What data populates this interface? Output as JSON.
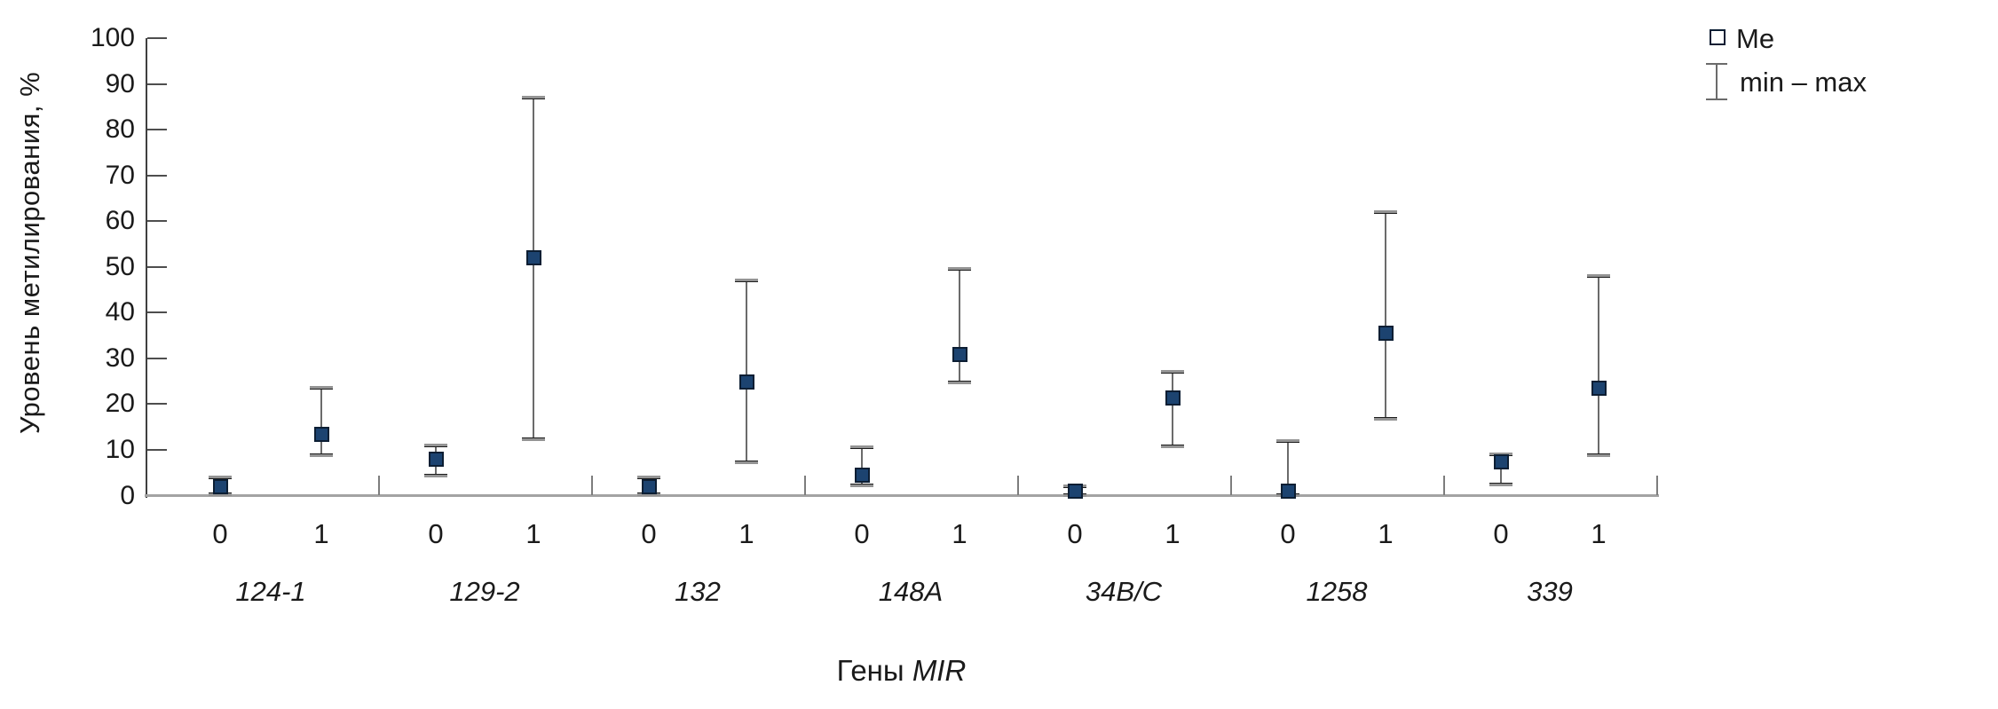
{
  "chart_data": {
    "type": "scatter",
    "title": "",
    "ylabel": "Уровень метилирования, %",
    "xlabel": {
      "prefix": "Гены ",
      "gene": "MIR"
    },
    "ylim": [
      0,
      100
    ],
    "yticks": [
      0,
      10,
      20,
      30,
      40,
      50,
      60,
      70,
      80,
      90,
      100
    ],
    "legend": {
      "me_label": "Me",
      "range_label": "min – max",
      "position": "top-right"
    },
    "grid": false,
    "x_category_labels": [
      "0",
      "1"
    ],
    "groups": [
      {
        "gene": "124-1",
        "points": [
          {
            "x": "0",
            "me": 2,
            "min": 0.5,
            "max": 4
          },
          {
            "x": "1",
            "me": 13.5,
            "min": 9,
            "max": 23.5
          }
        ]
      },
      {
        "gene": "129-2",
        "points": [
          {
            "x": "0",
            "me": 8,
            "min": 4.5,
            "max": 11
          },
          {
            "x": "1",
            "me": 52,
            "min": 12.5,
            "max": 87
          }
        ]
      },
      {
        "gene": "132",
        "points": [
          {
            "x": "0",
            "me": 2,
            "min": 0.5,
            "max": 4
          },
          {
            "x": "1",
            "me": 25,
            "min": 7.5,
            "max": 47
          }
        ]
      },
      {
        "gene": "148A",
        "points": [
          {
            "x": "0",
            "me": 4.5,
            "min": 2.5,
            "max": 10.5
          },
          {
            "x": "1",
            "me": 31,
            "min": 25,
            "max": 49.5
          }
        ]
      },
      {
        "gene": "34B/C",
        "points": [
          {
            "x": "0",
            "me": 1,
            "min": 0.2,
            "max": 2
          },
          {
            "x": "1",
            "me": 21.5,
            "min": 11,
            "max": 27
          }
        ]
      },
      {
        "gene": "1258",
        "points": [
          {
            "x": "0",
            "me": 1,
            "min": 0.2,
            "max": 12
          },
          {
            "x": "1",
            "me": 35.5,
            "min": 17,
            "max": 62
          }
        ]
      },
      {
        "gene": "339",
        "points": [
          {
            "x": "0",
            "me": 7.5,
            "min": 2.7,
            "max": 9
          },
          {
            "x": "1",
            "me": 23.5,
            "min": 9,
            "max": 48
          }
        ]
      }
    ],
    "colors": {
      "marker_fill": "#1c4370",
      "marker_border": "#0c1e33",
      "error_bar": "#6b6b6b",
      "cap": "#949494",
      "x_axis": "#a3a3a3",
      "y_axis": "#3f3f3f",
      "text": "#1a1a1a"
    }
  }
}
